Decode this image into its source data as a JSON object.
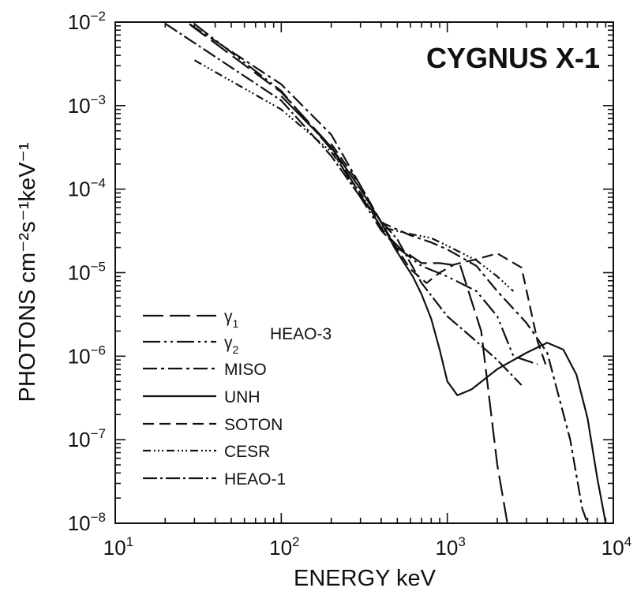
{
  "chart_data": {
    "type": "line",
    "title": "CYGNUS X-1",
    "xlabel": "ENERGY keV",
    "ylabel": "PHOTONS cm⁻²s⁻¹keV⁻¹",
    "x_scale": "log",
    "y_scale": "log",
    "xlim": [
      10,
      10000
    ],
    "ylim": [
      1e-08,
      0.01
    ],
    "grid": false,
    "legend_placement": "bottom-left",
    "x_ticks": [
      {
        "base": "10",
        "exp": "1"
      },
      {
        "base": "10",
        "exp": "2"
      },
      {
        "base": "10",
        "exp": "3"
      },
      {
        "base": "10",
        "exp": "4"
      }
    ],
    "y_ticks": [
      {
        "base": "10",
        "exp": "−2"
      },
      {
        "base": "10",
        "exp": "−3"
      },
      {
        "base": "10",
        "exp": "−4"
      },
      {
        "base": "10",
        "exp": "−5"
      },
      {
        "base": "10",
        "exp": "−6"
      },
      {
        "base": "10",
        "exp": "−7"
      },
      {
        "base": "10",
        "exp": "−8"
      }
    ],
    "legend_group_label": "HEAO-3",
    "series": [
      {
        "name": "γ",
        "name_sub": "1",
        "dash": "26,8",
        "x": [
          28,
          100,
          200,
          300,
          420,
          520,
          700,
          900,
          1200,
          1600,
          2000,
          2300
        ],
        "y": [
          0.0094,
          0.00145,
          0.00032,
          8.5e-05,
          3e-05,
          1.95e-05,
          1.3e-05,
          1.3e-05,
          1.2e-05,
          2e-06,
          5e-08,
          1e-08
        ]
      },
      {
        "name": "γ",
        "name_sub": "2",
        "dash": "22,5,3,5,3,5",
        "x": [
          30,
          100,
          200,
          300,
          400,
          500,
          700,
          1000,
          1500,
          2000,
          2500,
          3500
        ],
        "y": [
          0.0095,
          0.0015,
          0.0003,
          8e-05,
          3.2e-05,
          2e-05,
          1.2e-05,
          9e-06,
          6e-06,
          3e-06,
          1e-06,
          8e-07
        ]
      },
      {
        "name": "MISO",
        "dash": "18,5,4,5",
        "x": [
          28,
          100,
          200,
          300,
          400,
          600,
          800,
          1000,
          1500,
          2000,
          3000,
          4000,
          5500,
          6500,
          7000
        ],
        "y": [
          0.0095,
          0.0018,
          0.00045,
          0.00011,
          4e-05,
          2.8e-05,
          2.3e-05,
          1.9e-05,
          1.2e-05,
          6e-06,
          2.5e-06,
          1.1e-06,
          1e-07,
          1.5e-08,
          1e-08
        ]
      },
      {
        "name": "UNH",
        "dash": "",
        "x": [
          100,
          200,
          300,
          400,
          480,
          550,
          620,
          700,
          800,
          900,
          1000,
          1150,
          1400,
          2000,
          3000,
          4000,
          5000,
          6000,
          7000,
          8000,
          9000
        ],
        "y": [
          0.0013,
          0.00032,
          0.0001,
          4e-05,
          2e-05,
          1.3e-05,
          9e-06,
          5.5e-06,
          2.8e-06,
          1.2e-06,
          5e-07,
          3.4e-07,
          4e-07,
          7e-07,
          1.1e-06,
          1.45e-06,
          1.2e-06,
          6e-07,
          1.8e-07,
          3.5e-08,
          1e-08
        ]
      },
      {
        "name": "SOTON",
        "dash": "14,7",
        "x": [
          200,
          300,
          400,
          500,
          600,
          750,
          900,
          1100,
          1500,
          2000,
          2800,
          3500,
          4000
        ],
        "y": [
          0.00035,
          0.00011,
          4e-05,
          1.9e-05,
          1.1e-05,
          7.5e-06,
          1e-05,
          1.25e-05,
          1.45e-05,
          1.7e-05,
          1.15e-05,
          1.5e-06,
          7e-07
        ]
      },
      {
        "name": "CESR",
        "dash": "10,4,2,3,2,3,2,4",
        "x": [
          30,
          100,
          200,
          300,
          400,
          600,
          800,
          1000,
          1500,
          2000,
          2500
        ],
        "y": [
          0.0035,
          0.0009,
          0.00028,
          9e-05,
          3.5e-05,
          2.9e-05,
          2.6e-05,
          2.1e-05,
          1.4e-05,
          9e-06,
          6e-06
        ]
      },
      {
        "name": "HEAO-1",
        "dash": "18,4,3,4",
        "x": [
          20,
          100,
          200,
          300,
          500,
          700,
          1000,
          1500,
          2000,
          2800
        ],
        "y": [
          0.0096,
          0.00115,
          0.00025,
          8e-05,
          2.5e-05,
          7.5e-06,
          3e-06,
          1.5e-06,
          9e-07,
          4.5e-07
        ]
      }
    ]
  }
}
